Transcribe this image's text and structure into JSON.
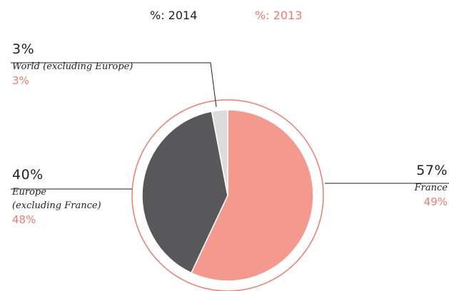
{
  "chart_data": {
    "type": "pie",
    "categories": [
      "France",
      "Europe\n(excluding France)",
      "World (excluding Europe)"
    ],
    "colors": [
      "#f4998d",
      "#58585a",
      "#dcdcdc"
    ],
    "series": [
      {
        "name": "%: 2014",
        "color": "#222222",
        "values": [
          57,
          40,
          3
        ],
        "value_labels": [
          "57%",
          "40%",
          "3%"
        ]
      },
      {
        "name": "%: 2013",
        "color": "#ef7b6e",
        "values": [
          49,
          48,
          3
        ],
        "value_labels": [
          "49%",
          "48%",
          "3%"
        ]
      }
    ]
  }
}
